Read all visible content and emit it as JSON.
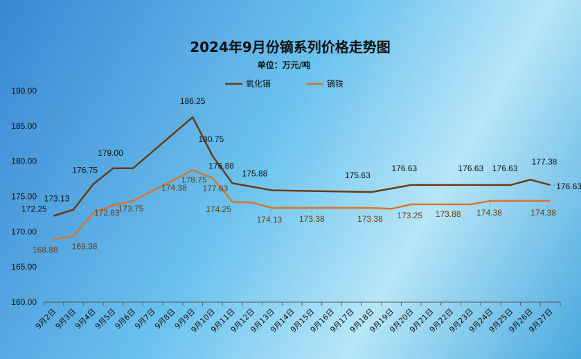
{
  "chart_data": {
    "type": "line",
    "title": "2024年9月份镝系列价格走势图",
    "subtitle": "单位：万元/吨",
    "categories": [
      "9月2日",
      "9月3日",
      "9月4日",
      "9月5日",
      "9月6日",
      "9月7日",
      "9月8日",
      "9月9日",
      "9月10日",
      "9月11日",
      "9月12日",
      "9月13日",
      "9月14日",
      "9月15日",
      "9月16日",
      "9月17日",
      "9月18日",
      "9月19日",
      "9月20日",
      "9月21日",
      "9月22日",
      "9月23日",
      "9月24日",
      "9月25日",
      "9月26日",
      "9月27日"
    ],
    "ylim": [
      160,
      190
    ],
    "yticks": [
      "160.00",
      "165.00",
      "170.00",
      "175.00",
      "180.00",
      "185.00",
      "190.00"
    ],
    "legend_position": "top-center",
    "grid": false,
    "series": [
      {
        "name": "氧化镝",
        "color": "#6b3a12",
        "x": [
          "9月2日",
          "9月3日",
          "9月4日",
          "9月5日",
          "9月6日",
          "9月9日",
          "9月10日",
          "9月11日",
          "9月13日",
          "9月18日",
          "9月20日",
          "9月23日",
          "9月25日",
          "9月26日",
          "9月27日"
        ],
        "values": [
          172.25,
          173.13,
          176.75,
          179.0,
          179.0,
          186.25,
          180.75,
          176.88,
          175.88,
          175.63,
          176.63,
          176.63,
          176.63,
          177.38,
          176.63
        ],
        "labels": [
          {
            "x": "9月2日",
            "text": "172.25"
          },
          {
            "x": "9月3日",
            "text": "173.13"
          },
          {
            "x": "9月4日",
            "text": "176.75"
          },
          {
            "x": "9月5日",
            "text": "179.00"
          },
          {
            "x": "9月9日",
            "text": "186.25"
          },
          {
            "x": "9月10日",
            "text": "180.75"
          },
          {
            "x": "9月11日",
            "text": "176.88"
          },
          {
            "x": "9月13日",
            "text": "175.88"
          },
          {
            "x": "9月18日",
            "text": "175.63"
          },
          {
            "x": "9月20日",
            "text": "176.63"
          },
          {
            "x": "9月23日",
            "text": "176.63"
          },
          {
            "x": "9月25日",
            "text": "176.63"
          },
          {
            "x": "9月26日",
            "text": "177.38"
          },
          {
            "x": "9月27日",
            "text": "176.63"
          }
        ]
      },
      {
        "name": "镝铁",
        "color": "#d9742a",
        "x": [
          "9月2日",
          "9月3日",
          "9月4日",
          "9月5日",
          "9月6日",
          "9月9日",
          "9月10日",
          "9月11日",
          "9月12日",
          "9月13日",
          "9月18日",
          "9月19日",
          "9月20日",
          "9月23日",
          "9月24日",
          "9月27日"
        ],
        "values": [
          168.88,
          169.38,
          172.63,
          173.75,
          174.38,
          178.75,
          177.63,
          174.25,
          174.13,
          173.38,
          173.38,
          173.25,
          173.88,
          173.88,
          174.38,
          174.38
        ],
        "labels": [
          {
            "x": "9月2日",
            "text": "168.88"
          },
          {
            "x": "9月3日",
            "text": "169.38"
          },
          {
            "x": "9月5日",
            "text": "172.63"
          },
          {
            "x": "9月6日",
            "text": "173.75"
          },
          {
            "x": "9月8日",
            "text": "174.38"
          },
          {
            "x": "9月9日",
            "text": "178.75"
          },
          {
            "x": "9月10日",
            "text": "177.63"
          },
          {
            "x": "9月11日",
            "text": "174.25"
          },
          {
            "x": "9月13日",
            "text": "174.13"
          },
          {
            "x": "9月15日",
            "text": "173.38"
          },
          {
            "x": "9月18日",
            "text": "173.38"
          },
          {
            "x": "9月20日",
            "text": "173.25"
          },
          {
            "x": "9月22日",
            "text": "173.88"
          },
          {
            "x": "9月24日",
            "text": "174.38"
          },
          {
            "x": "9月27日",
            "text": "174.38"
          }
        ]
      }
    ]
  }
}
